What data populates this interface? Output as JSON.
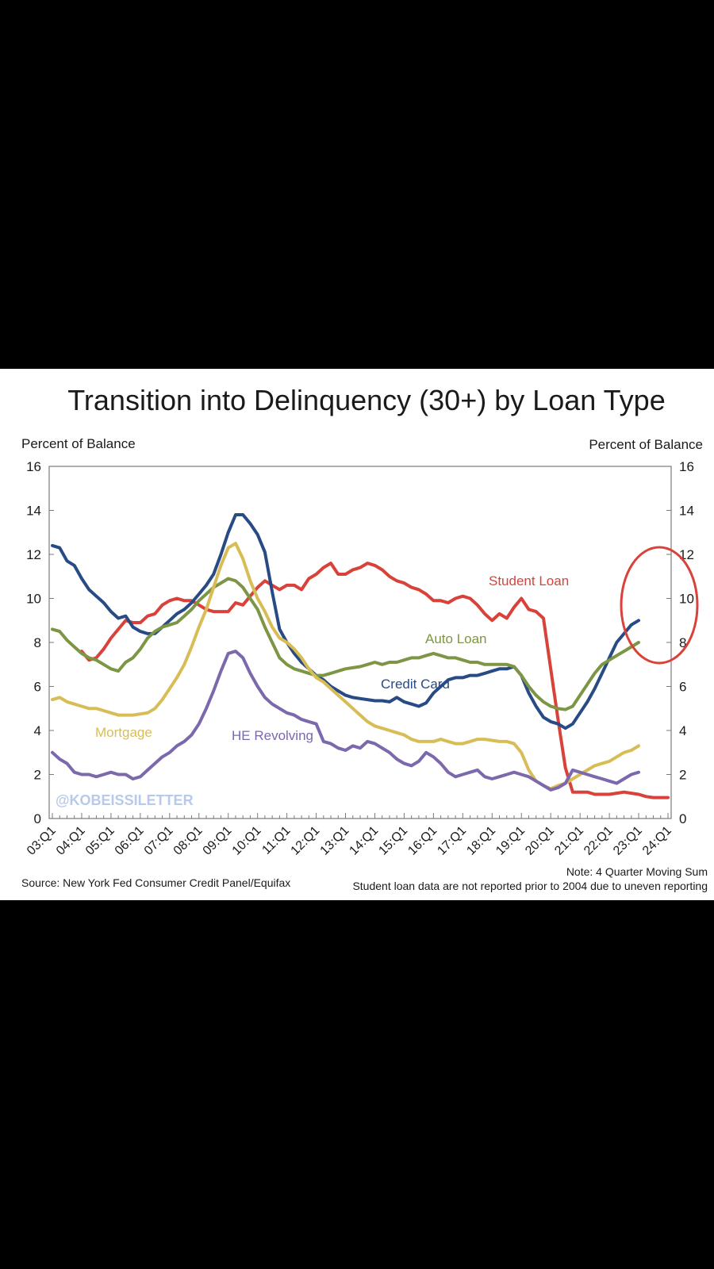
{
  "chart_data": {
    "type": "line",
    "title": "Transition into Delinquency (30+) by Loan Type",
    "ylabel_left": "Percent of Balance",
    "ylabel_right": "Percent of Balance",
    "ylim": [
      0,
      16
    ],
    "yticks": [
      0,
      2,
      4,
      6,
      8,
      10,
      12,
      14,
      16
    ],
    "x_tick_labels": [
      "03:Q1",
      "04:Q1",
      "05:Q1",
      "06:Q1",
      "07:Q1",
      "08:Q1",
      "09:Q1",
      "10:Q1",
      "11:Q1",
      "12:Q1",
      "13:Q1",
      "14:Q1",
      "15:Q1",
      "16:Q1",
      "17:Q1",
      "18:Q1",
      "19:Q1",
      "20:Q1",
      "21:Q1",
      "22:Q1",
      "23:Q1",
      "24:Q1"
    ],
    "x_start": "03:Q1",
    "x_end": "24:Q1",
    "grid": false,
    "legend": "inline labels",
    "source_note": "Source: New York Fed Consumer Credit Panel/Equifax",
    "note_1": "Note: 4 Quarter Moving Sum",
    "note_2": "Student loan data are not reported prior to 2004 due to uneven reporting",
    "watermark": "@KOBEISSILETTER",
    "annotation": "red circle highlighting recent credit card and auto loan rise",
    "series": [
      {
        "name": "Student Loan",
        "color": "#d9423a",
        "start_index": 4,
        "values": [
          7.6,
          7.2,
          7.3,
          7.7,
          8.2,
          8.6,
          9.0,
          8.9,
          8.9,
          9.2,
          9.3,
          9.7,
          9.9,
          10.0,
          9.9,
          9.9,
          9.7,
          9.5,
          9.4,
          9.4,
          9.4,
          9.8,
          9.7,
          10.1,
          10.5,
          10.8,
          10.6,
          10.4,
          10.6,
          10.6,
          10.4,
          10.9,
          11.1,
          11.4,
          11.6,
          11.1,
          11.1,
          11.3,
          11.4,
          11.6,
          11.5,
          11.3,
          11.0,
          10.8,
          10.7,
          10.5,
          10.4,
          10.2,
          9.9,
          9.9,
          9.8,
          10.0,
          10.1,
          10.0,
          9.7,
          9.3,
          9.0,
          9.3,
          9.1,
          9.6,
          10.0,
          9.5,
          9.4,
          9.1,
          6.8,
          4.5,
          2.3,
          1.2,
          1.2,
          1.2,
          1.1,
          1.1,
          1.1,
          1.15,
          1.2,
          1.15,
          1.1,
          1.0,
          0.95,
          0.95,
          0.95
        ]
      },
      {
        "name": "Credit Card",
        "color": "#284b86",
        "start_index": 0,
        "values": [
          12.4,
          12.3,
          11.7,
          11.5,
          10.9,
          10.4,
          10.1,
          9.8,
          9.4,
          9.1,
          9.2,
          8.7,
          8.5,
          8.4,
          8.4,
          8.7,
          9.0,
          9.3,
          9.5,
          9.8,
          10.2,
          10.6,
          11.1,
          12.0,
          13.0,
          13.8,
          13.8,
          13.4,
          12.9,
          12.1,
          10.3,
          8.6,
          8.0,
          7.5,
          7.1,
          6.8,
          6.5,
          6.3,
          6.0,
          5.8,
          5.6,
          5.5,
          5.45,
          5.4,
          5.35,
          5.35,
          5.3,
          5.5,
          5.3,
          5.2,
          5.1,
          5.25,
          5.7,
          6.0,
          6.3,
          6.4,
          6.4,
          6.5,
          6.5,
          6.6,
          6.7,
          6.8,
          6.8,
          6.9,
          6.5,
          5.7,
          5.1,
          4.6,
          4.4,
          4.3,
          4.1,
          4.3,
          4.8,
          5.3,
          5.9,
          6.6,
          7.3,
          8.0,
          8.4,
          8.8,
          9.0
        ]
      },
      {
        "name": "Auto Loan",
        "color": "#7d9645",
        "start_index": 0,
        "values": [
          8.6,
          8.5,
          8.1,
          7.8,
          7.5,
          7.3,
          7.2,
          7.0,
          6.8,
          6.7,
          7.1,
          7.3,
          7.7,
          8.2,
          8.5,
          8.7,
          8.8,
          8.9,
          9.2,
          9.5,
          9.9,
          10.2,
          10.5,
          10.7,
          10.9,
          10.8,
          10.5,
          10.0,
          9.5,
          8.7,
          8.0,
          7.3,
          7.0,
          6.8,
          6.7,
          6.6,
          6.5,
          6.5,
          6.6,
          6.7,
          6.8,
          6.85,
          6.9,
          7.0,
          7.1,
          7.0,
          7.1,
          7.1,
          7.2,
          7.3,
          7.3,
          7.4,
          7.5,
          7.4,
          7.3,
          7.3,
          7.2,
          7.1,
          7.1,
          7.0,
          7.0,
          7.0,
          7.0,
          6.9,
          6.5,
          6.0,
          5.6,
          5.3,
          5.1,
          5.0,
          4.95,
          5.1,
          5.6,
          6.1,
          6.6,
          7.0,
          7.2,
          7.4,
          7.6,
          7.8,
          8.0
        ]
      },
      {
        "name": "Mortgage",
        "color": "#d8bd57",
        "start_index": 0,
        "values": [
          5.4,
          5.5,
          5.3,
          5.2,
          5.1,
          5.0,
          5.0,
          4.9,
          4.8,
          4.7,
          4.7,
          4.7,
          4.75,
          4.8,
          5.0,
          5.4,
          5.9,
          6.4,
          7.0,
          7.8,
          8.7,
          9.5,
          10.5,
          11.5,
          12.3,
          12.5,
          11.8,
          10.8,
          10.0,
          9.4,
          8.7,
          8.2,
          8.0,
          7.7,
          7.3,
          6.8,
          6.4,
          6.2,
          5.9,
          5.6,
          5.3,
          5.0,
          4.7,
          4.4,
          4.2,
          4.1,
          4.0,
          3.9,
          3.8,
          3.6,
          3.5,
          3.5,
          3.5,
          3.6,
          3.5,
          3.4,
          3.4,
          3.5,
          3.6,
          3.6,
          3.55,
          3.5,
          3.5,
          3.4,
          3.0,
          2.2,
          1.7,
          1.5,
          1.35,
          1.5,
          1.6,
          1.8,
          2.0,
          2.2,
          2.4,
          2.5,
          2.6,
          2.8,
          3.0,
          3.1,
          3.3
        ]
      },
      {
        "name": "HE Revolving",
        "color": "#7b68ad",
        "start_index": 0,
        "values": [
          3.0,
          2.7,
          2.5,
          2.1,
          2.0,
          2.0,
          1.9,
          2.0,
          2.1,
          2.0,
          2.0,
          1.8,
          1.9,
          2.2,
          2.5,
          2.8,
          3.0,
          3.3,
          3.5,
          3.8,
          4.3,
          5.0,
          5.8,
          6.7,
          7.5,
          7.6,
          7.3,
          6.6,
          6.0,
          5.5,
          5.2,
          5.0,
          4.8,
          4.7,
          4.5,
          4.4,
          4.3,
          3.5,
          3.4,
          3.2,
          3.1,
          3.3,
          3.2,
          3.5,
          3.4,
          3.2,
          3.0,
          2.7,
          2.5,
          2.4,
          2.6,
          3.0,
          2.8,
          2.5,
          2.1,
          1.9,
          2.0,
          2.1,
          2.2,
          1.9,
          1.8,
          1.9,
          2.0,
          2.1,
          2.0,
          1.9,
          1.7,
          1.5,
          1.3,
          1.4,
          1.6,
          2.2,
          2.1,
          2.0,
          1.9,
          1.8,
          1.7,
          1.6,
          1.8,
          2.0,
          2.1
        ]
      }
    ]
  }
}
